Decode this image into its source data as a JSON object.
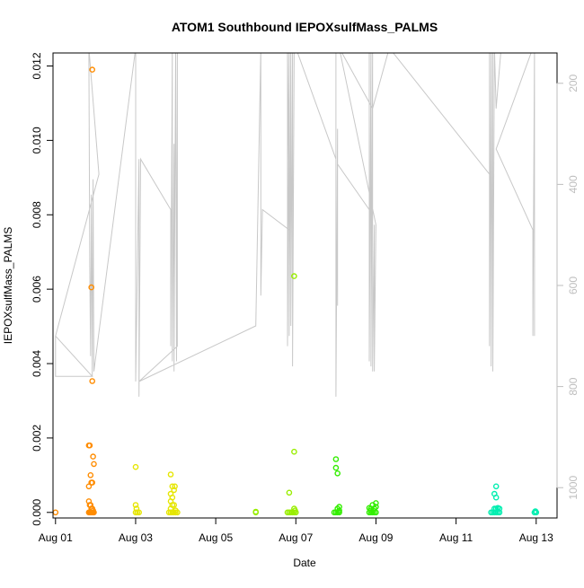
{
  "chart_data": {
    "type": "scatter",
    "title": "ATOM1 Southbound IEPOXsulfMass_PALMS",
    "xlabel": "Date",
    "ylabel": "IEPOXsulfMass_PALMS",
    "xlim": [
      "2016-07-31T22:30",
      "2016-08-13T12:30"
    ],
    "ylim": [
      -0.00015,
      0.01235
    ],
    "x_ticks": [
      {
        "date": "2016-08-01",
        "label": "Aug 01"
      },
      {
        "date": "2016-08-03",
        "label": "Aug 03"
      },
      {
        "date": "2016-08-05",
        "label": "Aug 05"
      },
      {
        "date": "2016-08-07",
        "label": "Aug 07"
      },
      {
        "date": "2016-08-09",
        "label": "Aug 09"
      },
      {
        "date": "2016-08-11",
        "label": "Aug 11"
      },
      {
        "date": "2016-08-13",
        "label": "Aug 13"
      }
    ],
    "y_ticks": [
      {
        "value": 0.0,
        "label": "0.000"
      },
      {
        "value": 0.002,
        "label": "0.002"
      },
      {
        "value": 0.004,
        "label": "0.004"
      },
      {
        "value": 0.006,
        "label": "0.006"
      },
      {
        "value": 0.008,
        "label": "0.008"
      },
      {
        "value": 0.01,
        "label": "0.010"
      },
      {
        "value": 0.012,
        "label": "0.012"
      }
    ],
    "right_axis": {
      "reversed": true,
      "range": [
        1060,
        140
      ],
      "color": "#bebebe",
      "ticks": [
        {
          "value": 200,
          "label": "200"
        },
        {
          "value": 400,
          "label": "400"
        },
        {
          "value": 600,
          "label": "600"
        },
        {
          "value": 800,
          "label": "800"
        },
        {
          "value": 1000,
          "label": "1000"
        }
      ]
    },
    "grid": false,
    "legend": "none",
    "background_line": {
      "color": "#c8c8c8",
      "points": [
        [
          "2016-08-01T00:00",
          700
        ],
        [
          "2016-08-01T00:00",
          780
        ],
        [
          "2016-08-01T22:00",
          780
        ],
        [
          "2016-08-01T00:00",
          700
        ],
        [
          "2016-08-02T02:00",
          380
        ],
        [
          "2016-08-01T20:00",
          130
        ],
        [
          "2016-08-01T20:30",
          560
        ],
        [
          "2016-08-01T21:00",
          740
        ],
        [
          "2016-08-01T21:30",
          420
        ],
        [
          "2016-08-01T22:00",
          780
        ],
        [
          "2016-08-01T22:30",
          390
        ],
        [
          "2016-08-01T23:00",
          770
        ],
        [
          "2016-08-03T00:00",
          130
        ],
        [
          "2016-08-03T00:00",
          790
        ],
        [
          "2016-08-03T02:00",
          350
        ],
        [
          "2016-08-03T02:00",
          820
        ],
        [
          "2016-08-03T03:00",
          350
        ],
        [
          "2016-08-03T21:00",
          450
        ],
        [
          "2016-08-03T21:00",
          720
        ],
        [
          "2016-08-03T22:00",
          130
        ],
        [
          "2016-08-03T22:00",
          750
        ],
        [
          "2016-08-03T23:00",
          320
        ],
        [
          "2016-08-03T23:00",
          770
        ],
        [
          "2016-08-04T00:00",
          130
        ],
        [
          "2016-08-04T00:30",
          750
        ],
        [
          "2016-08-04T01:00",
          130
        ],
        [
          "2016-08-04T01:00",
          720
        ],
        [
          "2016-08-03T02:00",
          790
        ],
        [
          "2016-08-06T00:00",
          680
        ],
        [
          "2016-08-06T03:00",
          130
        ],
        [
          "2016-08-06T03:00",
          620
        ],
        [
          "2016-08-06T04:00",
          450
        ],
        [
          "2016-08-06T20:00",
          490
        ],
        [
          "2016-08-06T19:00",
          130
        ],
        [
          "2016-08-06T19:00",
          720
        ],
        [
          "2016-08-06T20:00",
          130
        ],
        [
          "2016-08-06T20:00",
          700
        ],
        [
          "2016-08-06T21:00",
          130
        ],
        [
          "2016-08-06T21:00",
          680
        ],
        [
          "2016-08-06T22:00",
          130
        ],
        [
          "2016-08-06T22:00",
          760
        ],
        [
          "2016-08-06T23:00",
          130
        ],
        [
          "2016-08-07T00:00",
          130
        ],
        [
          "2016-08-08T00:00",
          350
        ],
        [
          "2016-08-08T00:00",
          130
        ],
        [
          "2016-08-08T00:00",
          820
        ],
        [
          "2016-08-08T01:00",
          290
        ],
        [
          "2016-08-08T01:00",
          640
        ],
        [
          "2016-08-08T01:00",
          360
        ],
        [
          "2016-08-08T20:00",
          450
        ],
        [
          "2016-08-08T20:00",
          130
        ],
        [
          "2016-08-08T20:00",
          750
        ],
        [
          "2016-08-08T21:00",
          130
        ],
        [
          "2016-08-08T21:00",
          760
        ],
        [
          "2016-08-08T22:00",
          130
        ],
        [
          "2016-08-08T22:00",
          770
        ],
        [
          "2016-08-08T23:00",
          480
        ],
        [
          "2016-08-08T23:00",
          770
        ],
        [
          "2016-08-09T00:00",
          480
        ],
        [
          "2016-08-08T02:00",
          130
        ],
        [
          "2016-08-08T22:00",
          250
        ],
        [
          "2016-08-09T08:00",
          130
        ],
        [
          "2016-08-11T20:00",
          380
        ],
        [
          "2016-08-11T20:00",
          130
        ],
        [
          "2016-08-11T20:00",
          720
        ],
        [
          "2016-08-11T21:00",
          130
        ],
        [
          "2016-08-11T21:00",
          760
        ],
        [
          "2016-08-11T22:00",
          130
        ],
        [
          "2016-08-11T22:00",
          770
        ],
        [
          "2016-08-11T23:00",
          130
        ],
        [
          "2016-08-12T00:00",
          250
        ],
        [
          "2016-08-12T03:00",
          130
        ],
        [
          "2016-08-12T22:00",
          130
        ],
        [
          "2016-08-12T00:00",
          330
        ],
        [
          "2016-08-12T22:00",
          490
        ],
        [
          "2016-08-12T22:00",
          700
        ],
        [
          "2016-08-12T23:00",
          130
        ],
        [
          "2016-08-12T23:00",
          700
        ]
      ]
    },
    "series": [
      {
        "color": "#ff8c00",
        "points": [
          [
            "2016-08-01T00:00",
            0.0
          ],
          [
            "2016-08-01T20:00",
            0.0018
          ],
          [
            "2016-08-01T20:30",
            0.0018
          ],
          [
            "2016-08-01T21:00",
            0.001
          ],
          [
            "2016-08-01T21:30",
            0.0008
          ],
          [
            "2016-08-01T22:00",
            0.0008
          ],
          [
            "2016-08-01T22:30",
            0.0015
          ],
          [
            "2016-08-01T23:00",
            0.0013
          ],
          [
            "2016-08-01T20:00",
            0.0007
          ],
          [
            "2016-08-01T22:00",
            0.0119
          ],
          [
            "2016-08-01T21:30",
            0.00605
          ],
          [
            "2016-08-01T22:00",
            0.00353
          ],
          [
            "2016-08-01T20:00",
            0.0003
          ],
          [
            "2016-08-01T20:30",
            0.0002
          ],
          [
            "2016-08-01T21:00",
            0.0002
          ],
          [
            "2016-08-01T21:30",
            0.0001
          ],
          [
            "2016-08-01T22:00",
            0.0001
          ],
          [
            "2016-08-01T22:30",
            5e-05
          ],
          [
            "2016-08-01T20:00",
            0.0
          ],
          [
            "2016-08-01T20:30",
            0.0
          ],
          [
            "2016-08-01T21:00",
            0.0
          ],
          [
            "2016-08-01T21:30",
            0.0
          ],
          [
            "2016-08-01T22:00",
            0.0
          ],
          [
            "2016-08-01T22:30",
            0.0
          ],
          [
            "2016-08-01T23:00",
            0.0
          ]
        ]
      },
      {
        "color": "#e6e600",
        "points": [
          [
            "2016-08-03T00:00",
            0.00122
          ],
          [
            "2016-08-03T00:00",
            0.0002
          ],
          [
            "2016-08-03T00:30",
            0.0001
          ],
          [
            "2016-08-03T00:00",
            0.0
          ],
          [
            "2016-08-03T01:00",
            0.0
          ],
          [
            "2016-08-03T02:00",
            0.0
          ],
          [
            "2016-08-03T21:00",
            0.00102
          ],
          [
            "2016-08-03T21:00",
            0.0005
          ],
          [
            "2016-08-03T22:00",
            0.0007
          ],
          [
            "2016-08-03T22:00",
            0.0004
          ],
          [
            "2016-08-03T23:00",
            0.0006
          ],
          [
            "2016-08-03T23:30",
            0.0007
          ],
          [
            "2016-08-03T21:00",
            0.0003
          ],
          [
            "2016-08-03T22:00",
            0.0002
          ],
          [
            "2016-08-03T23:00",
            0.0002
          ],
          [
            "2016-08-03T21:00",
            0.0001
          ],
          [
            "2016-08-04T00:00",
            5e-05
          ],
          [
            "2016-08-03T20:00",
            0.0
          ],
          [
            "2016-08-03T21:00",
            0.0
          ],
          [
            "2016-08-03T22:00",
            0.0
          ],
          [
            "2016-08-03T23:00",
            0.0
          ],
          [
            "2016-08-04T00:00",
            0.0
          ],
          [
            "2016-08-04T01:00",
            0.0
          ]
        ]
      },
      {
        "color": "#99ee00",
        "points": [
          [
            "2016-08-06T00:00",
            0.0
          ],
          [
            "2016-08-06T00:00",
            2e-05
          ],
          [
            "2016-08-06T20:00",
            0.00053
          ],
          [
            "2016-08-06T23:00",
            0.00163
          ],
          [
            "2016-08-06T23:00",
            0.00635
          ],
          [
            "2016-08-06T23:00",
            0.0001
          ],
          [
            "2016-08-06T23:30",
            5e-05
          ],
          [
            "2016-08-06T19:00",
            0.0
          ],
          [
            "2016-08-06T20:00",
            0.0
          ],
          [
            "2016-08-06T21:00",
            0.0
          ],
          [
            "2016-08-06T22:00",
            0.0
          ],
          [
            "2016-08-06T23:00",
            0.0
          ],
          [
            "2016-08-07T00:00",
            0.0
          ]
        ]
      },
      {
        "color": "#33ee00",
        "points": [
          [
            "2016-08-08T00:00",
            0.00143
          ],
          [
            "2016-08-08T00:00",
            0.0012
          ],
          [
            "2016-08-08T01:00",
            0.00105
          ],
          [
            "2016-08-08T02:00",
            0.00015
          ],
          [
            "2016-08-08T01:00",
            0.0001
          ],
          [
            "2016-08-08T02:00",
            5e-05
          ],
          [
            "2016-08-07T23:00",
            0.0
          ],
          [
            "2016-08-08T00:00",
            0.0
          ],
          [
            "2016-08-08T01:00",
            0.0
          ],
          [
            "2016-08-08T02:00",
            0.0
          ],
          [
            "2016-08-08T20:00",
            0.00012
          ],
          [
            "2016-08-08T21:00",
            5e-05
          ],
          [
            "2016-08-08T22:00",
            0.0002
          ],
          [
            "2016-08-09T00:00",
            0.00025
          ],
          [
            "2016-08-09T00:00",
            0.00015
          ],
          [
            "2016-08-08T21:00",
            0.0001
          ],
          [
            "2016-08-08T23:00",
            0.0001
          ],
          [
            "2016-08-08T20:00",
            0.0
          ],
          [
            "2016-08-08T21:00",
            0.0
          ],
          [
            "2016-08-08T22:00",
            0.0
          ],
          [
            "2016-08-08T23:00",
            0.0
          ],
          [
            "2016-08-09T00:00",
            0.0
          ]
        ]
      },
      {
        "color": "#00eeb0",
        "points": [
          [
            "2016-08-12T00:00",
            0.0007
          ],
          [
            "2016-08-11T23:00",
            0.0005
          ],
          [
            "2016-08-12T00:00",
            0.0004
          ],
          [
            "2016-08-12T01:00",
            0.00012
          ],
          [
            "2016-08-11T23:00",
            0.0001
          ],
          [
            "2016-08-12T00:00",
            0.0001
          ],
          [
            "2016-08-12T02:00",
            0.0001
          ],
          [
            "2016-08-11T21:00",
            0.0
          ],
          [
            "2016-08-11T22:00",
            0.0
          ],
          [
            "2016-08-11T23:00",
            0.0
          ],
          [
            "2016-08-12T00:00",
            0.0
          ],
          [
            "2016-08-12T01:00",
            0.0
          ],
          [
            "2016-08-12T02:00",
            0.0
          ],
          [
            "2016-08-12T23:00",
            0.0
          ],
          [
            "2016-08-13T00:00",
            0.0
          ],
          [
            "2016-08-12T23:30",
            3e-05
          ]
        ]
      }
    ]
  }
}
